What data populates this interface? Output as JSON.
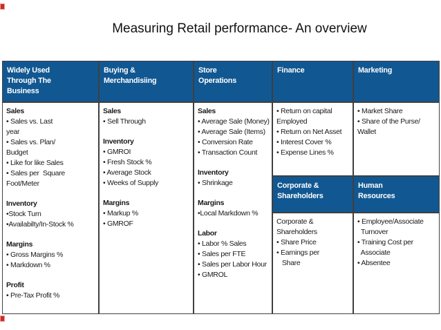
{
  "title": "Measuring Retail performance- An overview",
  "colors": {
    "header_bg": "#115892",
    "header_text": "#FFFFFF",
    "body_text": "#1A1A1A",
    "border": "#3F3F3F",
    "edge_mark": "#CC2B24"
  },
  "table": {
    "column_headers": [
      "Widely Used\nThrough The\nBusiness",
      "Buying &\nMerchandisiing",
      "Store\nOperations",
      "Finance",
      "Marketing"
    ],
    "section_headers": {
      "corporate": "Corporate &\nShareholders",
      "human_resources": "Human\nResources"
    },
    "cells": {
      "business": [
        {
          "type": "heading",
          "text": "Sales"
        },
        {
          "type": "item",
          "text": "• Sales vs. Last"
        },
        {
          "type": "item",
          "text": "year"
        },
        {
          "type": "item",
          "text": "• Sales vs. Plan/"
        },
        {
          "type": "item",
          "text": "Budget"
        },
        {
          "type": "item",
          "text": "• Like for like Sales"
        },
        {
          "type": "item",
          "text": "• Sales per  Square"
        },
        {
          "type": "item",
          "text": "Foot/Meter"
        },
        {
          "type": "gap"
        },
        {
          "type": "heading",
          "text": "Inventory"
        },
        {
          "type": "item",
          "text": "•Stock Turn"
        },
        {
          "type": "item",
          "text": "•Availabilty/In-Stock %"
        },
        {
          "type": "gap"
        },
        {
          "type": "heading",
          "text": "Margins"
        },
        {
          "type": "item",
          "text": "• Gross Margins %"
        },
        {
          "type": "item",
          "text": "• Markdown %"
        },
        {
          "type": "gap"
        },
        {
          "type": "heading",
          "text": "Profit"
        },
        {
          "type": "item",
          "text": "• Pre-Tax Profit %"
        }
      ],
      "buying": [
        {
          "type": "heading",
          "text": "Sales"
        },
        {
          "type": "item",
          "text": "• Sell Through"
        },
        {
          "type": "gap"
        },
        {
          "type": "heading",
          "text": "Inventory"
        },
        {
          "type": "item",
          "text": "• GMROI"
        },
        {
          "type": "item",
          "text": "• Fresh Stock %"
        },
        {
          "type": "item",
          "text": "• Average Stock"
        },
        {
          "type": "item",
          "text": "• Weeks of Supply"
        },
        {
          "type": "gap"
        },
        {
          "type": "heading",
          "text": "Margins"
        },
        {
          "type": "item",
          "text": "• Markup %"
        },
        {
          "type": "item",
          "text": "• GMROF"
        }
      ],
      "store": [
        {
          "type": "heading",
          "text": "Sales"
        },
        {
          "type": "item",
          "text": "• Average Sale (Money)"
        },
        {
          "type": "item",
          "text": "• Average Sale (Items)"
        },
        {
          "type": "item",
          "text": "• Conversion Rate"
        },
        {
          "type": "item",
          "text": "• Transaction Count"
        },
        {
          "type": "gap"
        },
        {
          "type": "heading",
          "text": "Inventory"
        },
        {
          "type": "item",
          "text": "• Shrinkage"
        },
        {
          "type": "gap"
        },
        {
          "type": "heading",
          "text": "Margins"
        },
        {
          "type": "item",
          "text": "•Local Markdown %"
        },
        {
          "type": "gap"
        },
        {
          "type": "heading",
          "text": "Labor"
        },
        {
          "type": "item",
          "text": "• Labor % Sales"
        },
        {
          "type": "item",
          "text": "• Sales per FTE"
        },
        {
          "type": "item",
          "text": "• Sales per Labor Hour"
        },
        {
          "type": "item",
          "text": "• GMROL"
        }
      ],
      "finance": [
        {
          "type": "item",
          "text": "• Return on capital"
        },
        {
          "type": "item",
          "text": "Employed"
        },
        {
          "type": "item",
          "text": "• Return on Net Asset"
        },
        {
          "type": "item",
          "text": "• Interest Cover %"
        },
        {
          "type": "item",
          "text": "• Expense Lines %"
        }
      ],
      "corporate": [
        {
          "type": "item",
          "text": "Corporate &"
        },
        {
          "type": "item",
          "text": "Shareholders"
        },
        {
          "type": "item",
          "text": "• Share Price"
        },
        {
          "type": "item",
          "text": "• Earnings per"
        },
        {
          "type": "item",
          "text": "   Share"
        }
      ],
      "marketing": [
        {
          "type": "item",
          "text": "• Market Share"
        },
        {
          "type": "item",
          "text": "• Share of the Purse/"
        },
        {
          "type": "item",
          "text": "Wallet"
        }
      ],
      "human_resources": [
        {
          "type": "item",
          "text": "• Employee/Associate"
        },
        {
          "type": "item",
          "text": "  Turnover"
        },
        {
          "type": "item",
          "text": "• Training Cost per"
        },
        {
          "type": "item",
          "text": "  Associate"
        },
        {
          "type": "item",
          "text": "• Absentee"
        }
      ]
    }
  }
}
